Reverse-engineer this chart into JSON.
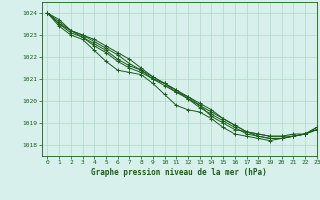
{
  "title": "Graphe pression niveau de la mer (hPa)",
  "xlim": [
    -0.5,
    23
  ],
  "ylim": [
    1017.5,
    1024.5
  ],
  "yticks": [
    1018,
    1019,
    1020,
    1021,
    1022,
    1023,
    1024
  ],
  "xticks": [
    0,
    1,
    2,
    3,
    4,
    5,
    6,
    7,
    8,
    9,
    10,
    11,
    12,
    13,
    14,
    15,
    16,
    17,
    18,
    19,
    20,
    21,
    22,
    23
  ],
  "background_color": "#d8f0ec",
  "grid_color": "#b0d8c8",
  "line_color": "#1a5c1a",
  "lines": [
    [
      1024.0,
      1023.7,
      1023.2,
      1022.9,
      1022.5,
      1022.2,
      1021.8,
      1021.5,
      1021.3,
      1021.0,
      1020.7,
      1020.4,
      1020.2,
      1019.8,
      1019.3,
      1019.0,
      1018.7,
      1018.6,
      1018.5,
      1018.4,
      1018.4,
      1018.5,
      1018.5,
      1018.7
    ],
    [
      1024.0,
      1023.6,
      1023.2,
      1023.0,
      1022.8,
      1022.5,
      1022.2,
      1021.9,
      1021.5,
      1021.1,
      1020.8,
      1020.4,
      1020.1,
      1019.8,
      1019.5,
      1019.2,
      1018.9,
      1018.6,
      1018.5,
      1018.4,
      1018.4,
      1018.4,
      1018.5,
      1018.7
    ],
    [
      1024.0,
      1023.5,
      1023.1,
      1022.9,
      1022.6,
      1022.3,
      1021.9,
      1021.6,
      1021.4,
      1021.1,
      1020.8,
      1020.5,
      1020.2,
      1019.9,
      1019.6,
      1019.2,
      1018.9,
      1018.6,
      1018.4,
      1018.3,
      1018.3,
      1018.4,
      1018.5,
      1018.7
    ],
    [
      1024.0,
      1023.5,
      1023.2,
      1023.0,
      1022.7,
      1022.4,
      1022.1,
      1021.7,
      1021.4,
      1021.0,
      1020.8,
      1020.5,
      1020.1,
      1019.7,
      1019.4,
      1019.1,
      1018.8,
      1018.5,
      1018.4,
      1018.3,
      1018.3,
      1018.4,
      1018.5,
      1018.8
    ],
    [
      1024.0,
      1023.4,
      1023.0,
      1022.8,
      1022.3,
      1021.8,
      1021.4,
      1021.3,
      1021.2,
      1020.8,
      1020.3,
      1019.8,
      1019.6,
      1019.5,
      1019.2,
      1018.8,
      1018.5,
      1018.4,
      1018.3,
      1018.2,
      1018.3,
      1018.4,
      1018.5,
      1018.8
    ]
  ]
}
